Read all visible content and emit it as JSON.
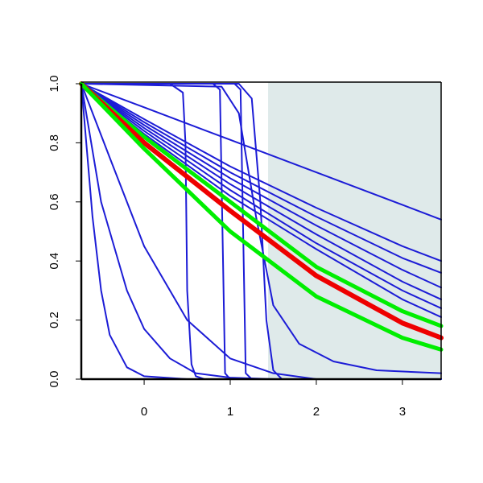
{
  "chart_data": {
    "type": "line",
    "x": [
      -0.73,
      0,
      1,
      2,
      3,
      3.45
    ],
    "xlim": [
      -0.73,
      3.45
    ],
    "ylim": [
      0,
      1
    ],
    "xticks": [
      0,
      1,
      2,
      3
    ],
    "yticks": [
      {
        "value": 0,
        "label": "0.0"
      },
      0.2,
      0.4,
      0.6,
      0.8,
      {
        "value": 1,
        "label": "1.0"
      }
    ],
    "shaded_region": {
      "x": [
        1.44,
        3.45
      ],
      "color": "#dfeaea"
    },
    "series": [
      {
        "color": "#1c1cd6",
        "width": 2,
        "values": [
          1,
          0.92,
          0.81,
          0.7,
          0.59,
          0.54
        ]
      },
      {
        "color": "#1c1cd6",
        "width": 2,
        "values": [
          1,
          0.88,
          0.72,
          0.58,
          0.45,
          0.4
        ]
      },
      {
        "color": "#1c1cd6",
        "width": 2,
        "values": [
          1,
          0.87,
          0.7,
          0.55,
          0.41,
          0.36
        ]
      },
      {
        "color": "#1c1cd6",
        "width": 2,
        "values": [
          1,
          0.86,
          0.68,
          0.52,
          0.37,
          0.31
        ]
      },
      {
        "color": "#1c1cd6",
        "width": 2,
        "values": [
          1,
          0.85,
          0.66,
          0.49,
          0.33,
          0.27
        ]
      },
      {
        "color": "#1c1cd6",
        "width": 2,
        "values": [
          1,
          0.84,
          0.64,
          0.46,
          0.3,
          0.24
        ]
      },
      {
        "color": "#1c1cd6",
        "width": 2,
        "values": [
          1,
          0.83,
          0.62,
          0.44,
          0.27,
          0.21
        ]
      },
      {
        "color": "#1c1cd6",
        "width": 2,
        "x": [
          -0.73,
          -0.6,
          -0.5,
          -0.4,
          -0.2,
          0,
          0.5,
          3.45
        ],
        "values": [
          1,
          0.55,
          0.3,
          0.15,
          0.04,
          0.01,
          0,
          0
        ]
      },
      {
        "color": "#1c1cd6",
        "width": 2,
        "x": [
          -0.73,
          -0.5,
          -0.2,
          0,
          0.3,
          0.6,
          1,
          1.5,
          3.45
        ],
        "values": [
          1,
          0.6,
          0.3,
          0.17,
          0.07,
          0.02,
          0.005,
          0,
          0
        ]
      },
      {
        "color": "#1c1cd6",
        "width": 2,
        "x": [
          -0.73,
          -0.4,
          0,
          0.5,
          1,
          1.5,
          2,
          3.45
        ],
        "values": [
          1,
          0.75,
          0.45,
          0.2,
          0.07,
          0.02,
          0,
          0
        ]
      },
      {
        "color": "#1c1cd6",
        "width": 2,
        "x": [
          -0.73,
          0.3,
          0.45,
          0.48,
          0.5,
          0.55,
          0.6,
          0.7,
          3.45
        ],
        "values": [
          1,
          1,
          0.97,
          0.8,
          0.3,
          0.05,
          0.01,
          0,
          0
        ]
      },
      {
        "color": "#1c1cd6",
        "width": 2,
        "x": [
          -0.73,
          0.8,
          0.88,
          0.91,
          0.94,
          1.0,
          3.45
        ],
        "values": [
          1,
          1,
          0.98,
          0.5,
          0.02,
          0,
          0
        ]
      },
      {
        "color": "#1c1cd6",
        "width": 2,
        "x": [
          -0.73,
          1.05,
          1.12,
          1.15,
          1.18,
          1.25,
          3.45
        ],
        "values": [
          1,
          1,
          0.98,
          0.5,
          0.02,
          0,
          0
        ]
      },
      {
        "color": "#1c1cd6",
        "width": 2,
        "x": [
          -0.73,
          1.1,
          1.25,
          1.35,
          1.42,
          1.5,
          1.6,
          3.45
        ],
        "values": [
          1,
          1,
          0.95,
          0.6,
          0.2,
          0.03,
          0,
          0
        ]
      },
      {
        "color": "#1c1cd6",
        "width": 2,
        "x": [
          -0.73,
          0.9,
          1.1,
          1.3,
          1.5,
          1.8,
          2.2,
          2.7,
          3.45
        ],
        "values": [
          1,
          0.99,
          0.9,
          0.55,
          0.25,
          0.12,
          0.06,
          0.03,
          0.02
        ]
      },
      {
        "color": "#00ee00",
        "width": 5,
        "values": [
          1,
          0.82,
          0.6,
          0.38,
          0.23,
          0.18
        ]
      },
      {
        "color": "#ee0000",
        "width": 6,
        "values": [
          1,
          0.8,
          0.57,
          0.35,
          0.19,
          0.14
        ]
      },
      {
        "color": "#00ee00",
        "width": 5,
        "values": [
          1,
          0.78,
          0.5,
          0.28,
          0.14,
          0.1
        ]
      }
    ]
  }
}
